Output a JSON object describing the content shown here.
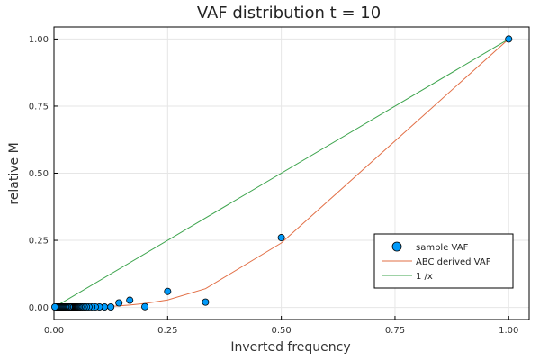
{
  "chart_data": {
    "type": "scatter",
    "title": "VAF distribution t = 10",
    "xlabel": "Inverted frequency",
    "ylabel": "relative M",
    "xlim": [
      0,
      1.045
    ],
    "ylim": [
      -0.045,
      1.045
    ],
    "xticks": [
      0,
      0.25,
      0.5,
      0.75,
      1.0
    ],
    "xtick_labels": [
      "0.00",
      "0.25",
      "0.50",
      "0.75",
      "1.00"
    ],
    "yticks": [
      0,
      0.25,
      0.5,
      0.75,
      1.0
    ],
    "ytick_labels": [
      "0.00",
      "0.25",
      "0.50",
      "0.75",
      "1.00"
    ],
    "grid": true,
    "legend_position": "bottom-right",
    "series": [
      {
        "name": "sample VAF",
        "kind": "scatter",
        "color": "#009AFA",
        "x": [
          1.0,
          0.5,
          0.3333,
          0.25,
          0.2,
          0.1667,
          0.1429,
          0.125,
          0.1111,
          0.1,
          0.0909,
          0.0833,
          0.0769,
          0.0714,
          0.0667,
          0.0625,
          0.0588,
          0.0556,
          0.0526,
          0.05,
          0.0476,
          0.0455,
          0.0435,
          0.0417,
          0.04,
          0.0385,
          0.037,
          0.0357,
          0.0345,
          0.0333,
          0.03,
          0.027,
          0.025,
          0.022,
          0.02,
          0.018,
          0.016,
          0.014,
          0.012,
          0.01,
          0.008,
          0.006,
          0.004,
          0.002
        ],
        "y": [
          1.0,
          0.26,
          0.02,
          0.06,
          0.003,
          0.027,
          0.017,
          0.002,
          0.002,
          0.002,
          0.002,
          0.002,
          0.002,
          0.002,
          0.002,
          0.002,
          0.002,
          0.002,
          0.002,
          0.002,
          0.002,
          0.002,
          0.002,
          0.002,
          0.002,
          0.002,
          0.002,
          0.002,
          0.002,
          0.002,
          0.002,
          0.002,
          0.002,
          0.002,
          0.002,
          0.002,
          0.002,
          0.002,
          0.002,
          0.002,
          0.002,
          0.002,
          0.002,
          0.002
        ]
      },
      {
        "name": "ABC derived VAF",
        "kind": "line",
        "color": "#E26F46",
        "x": [
          0,
          0.05,
          0.1,
          0.125,
          0.1429,
          0.1667,
          0.2,
          0.25,
          0.3333,
          0.5,
          1.0
        ],
        "y": [
          0,
          0.0005,
          0.002,
          0.004,
          0.006,
          0.009,
          0.015,
          0.028,
          0.07,
          0.24,
          1.0
        ]
      },
      {
        "name": "1 /x",
        "kind": "line",
        "color": "#3DA44D",
        "x": [
          0,
          1.0
        ],
        "y": [
          0,
          1.0
        ]
      }
    ]
  }
}
